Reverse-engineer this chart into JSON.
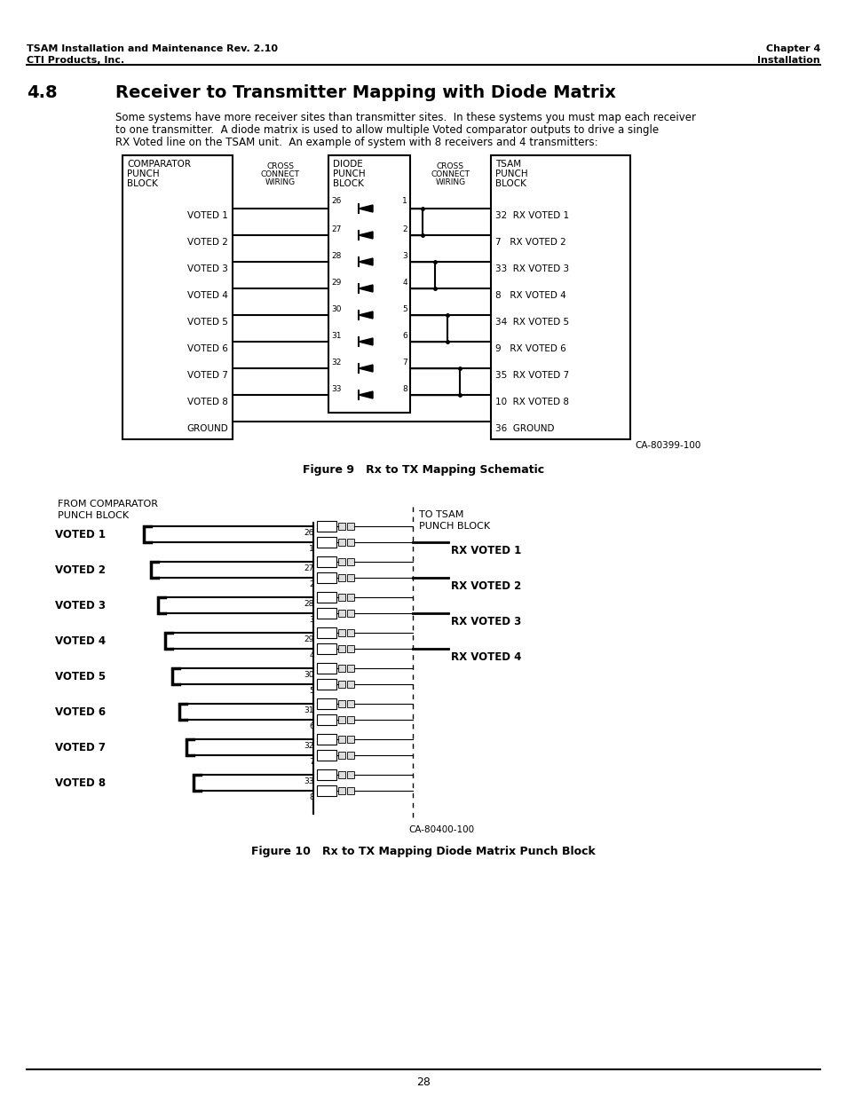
{
  "header_left_line1": "TSAM Installation and Maintenance Rev. 2.10",
  "header_left_line2": "CTI Products, Inc.",
  "header_right_line1": "Chapter 4",
  "header_right_line2": "Installation",
  "page_number": "28",
  "section_num": "4.8",
  "section_title": "Receiver to Transmitter Mapping with Diode Matrix",
  "body_text_lines": [
    "Some systems have more receiver sites than transmitter sites.  In these systems you must map each receiver",
    "to one transmitter.  A diode matrix is used to allow multiple Voted comparator outputs to drive a single",
    "RX Voted line on the TSAM unit.  An example of system with 8 receivers and 4 transmitters:"
  ],
  "fig9_caption": "Figure 9   Rx to TX Mapping Schematic",
  "fig10_caption": "Figure 10   Rx to TX Mapping Diode Matrix Punch Block",
  "ca_code1": "CA-80399-100",
  "ca_code2": "CA-80400-100",
  "voted_labels": [
    "VOTED 1",
    "VOTED 2",
    "VOTED 3",
    "VOTED 4",
    "VOTED 5",
    "VOTED 6",
    "VOTED 7",
    "VOTED 8"
  ],
  "rx_voted_labels": [
    "32  RX VOTED 1",
    "7   RX VOTED 2",
    "33  RX VOTED 3",
    "8   RX VOTED 4",
    "34  RX VOTED 5",
    "9   RX VOTED 6",
    "35  RX VOTED 7",
    "10  RX VOTED 8"
  ],
  "diode_left_nums": [
    "26",
    "27",
    "28",
    "29",
    "30",
    "31",
    "32",
    "33"
  ],
  "diode_right_nums": [
    "1",
    "2",
    "3",
    "4",
    "5",
    "6",
    "7",
    "8"
  ],
  "fig10_voted_labels": [
    "VOTED 1",
    "VOTED 2",
    "VOTED 3",
    "VOTED 4",
    "VOTED 5",
    "VOTED 6",
    "VOTED 7",
    "VOTED 8"
  ],
  "fig10_rx_labels": [
    "RX VOTED 1",
    "RX VOTED 2",
    "RX VOTED 3",
    "RX VOTED 4"
  ],
  "fig10_pin_pairs": [
    [
      "26",
      "1"
    ],
    [
      "27",
      "2"
    ],
    [
      "28",
      "3"
    ],
    [
      "29",
      "4"
    ],
    [
      "30",
      "5"
    ],
    [
      "31",
      "6"
    ],
    [
      "32",
      "7"
    ],
    [
      "33",
      "8"
    ]
  ],
  "background": "#ffffff"
}
